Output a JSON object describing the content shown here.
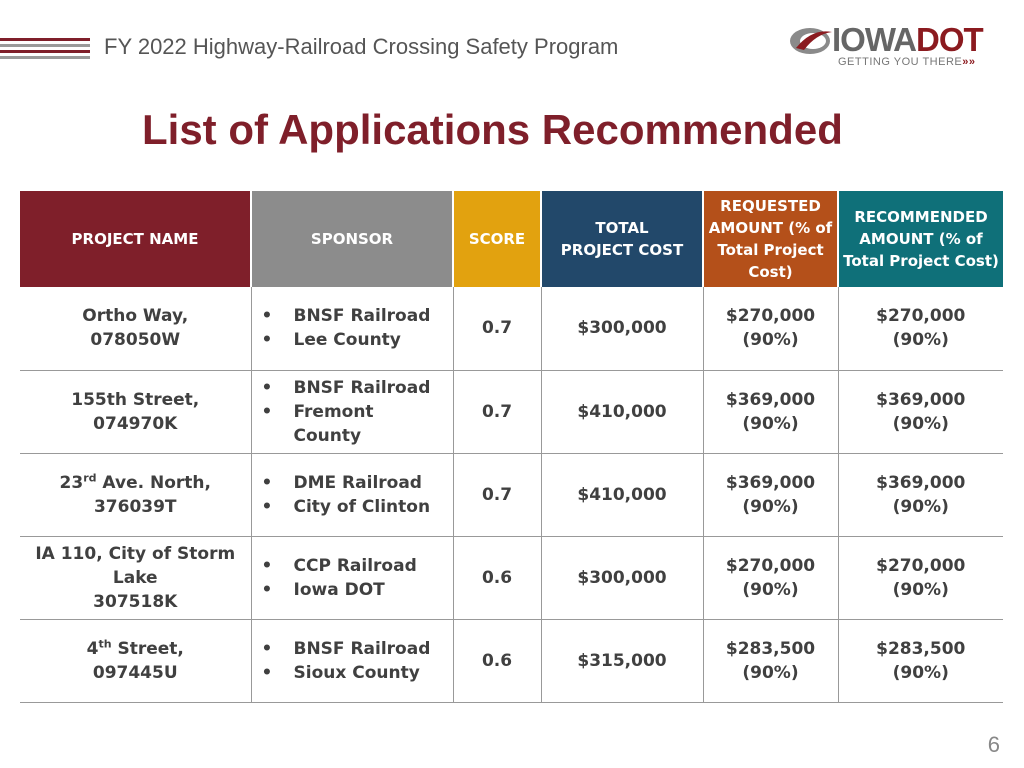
{
  "header": {
    "title": "FY 2022 Highway-Railroad Crossing Safety Program",
    "stripe_colors": [
      "#7f1f2a",
      "#9a9a9a",
      "#7f1f2a",
      "#9a9a9a"
    ]
  },
  "logo": {
    "brand_iowa": "IOWA",
    "brand_dot": "DOT",
    "tagline": "GETTING YOU THERE",
    "tagline_arrows": "»»"
  },
  "title": "List of Applications Recommended",
  "table": {
    "headers": [
      {
        "label": "PROJECT NAME",
        "color": "#7f1f2a"
      },
      {
        "label": "SPONSOR",
        "color": "#8c8c8c"
      },
      {
        "label": "SCORE",
        "color": "#e2a20f"
      },
      {
        "label": "TOTAL PROJECT COST",
        "color": "#22486a"
      },
      {
        "label": "REQUESTED AMOUNT (% of Total Project Cost)",
        "color": "#b4501a"
      },
      {
        "label": "RECOMMENDED AMOUNT (% of Total Project Cost)",
        "color": "#0f7079"
      }
    ],
    "rows": [
      {
        "project_line1_pre": "Ortho Way,",
        "project_sup": "",
        "project_line1_post": "",
        "project_line2": "078050W",
        "sponsors": [
          "BNSF Railroad",
          "Lee County"
        ],
        "score": "0.7",
        "total_cost": "$300,000",
        "requested": "$270,000",
        "requested_pct": "(90%)",
        "recommended": "$270,000",
        "recommended_pct": "(90%)"
      },
      {
        "project_line1_pre": "155th Street,",
        "project_sup": "",
        "project_line1_post": "",
        "project_line2": "074970K",
        "sponsors": [
          "BNSF Railroad",
          "Fremont County"
        ],
        "score": "0.7",
        "total_cost": "$410,000",
        "requested": "$369,000",
        "requested_pct": "(90%)",
        "recommended": "$369,000",
        "recommended_pct": "(90%)"
      },
      {
        "project_line1_pre": "23",
        "project_sup": "rd",
        "project_line1_post": " Ave. North,",
        "project_line2": "376039T",
        "sponsors": [
          "DME Railroad",
          "City of Clinton"
        ],
        "score": "0.7",
        "total_cost": "$410,000",
        "requested": "$369,000",
        "requested_pct": "(90%)",
        "recommended": "$369,000",
        "recommended_pct": "(90%)"
      },
      {
        "project_line1_pre": "IA 110, City of Storm Lake",
        "project_sup": "",
        "project_line1_post": "",
        "project_line2": "307518K",
        "sponsors": [
          "CCP Railroad",
          "Iowa DOT"
        ],
        "score": "0.6",
        "total_cost": "$300,000",
        "requested": "$270,000",
        "requested_pct": "(90%)",
        "recommended": "$270,000",
        "recommended_pct": "(90%)"
      },
      {
        "project_line1_pre": "4",
        "project_sup": "th",
        "project_line1_post": " Street,",
        "project_line2": "097445U",
        "sponsors": [
          "BNSF Railroad",
          "Sioux County"
        ],
        "score": "0.6",
        "total_cost": "$315,000",
        "requested": "$283,500",
        "requested_pct": "(90%)",
        "recommended": "$283,500",
        "recommended_pct": "(90%)"
      }
    ]
  },
  "page_number": "6"
}
